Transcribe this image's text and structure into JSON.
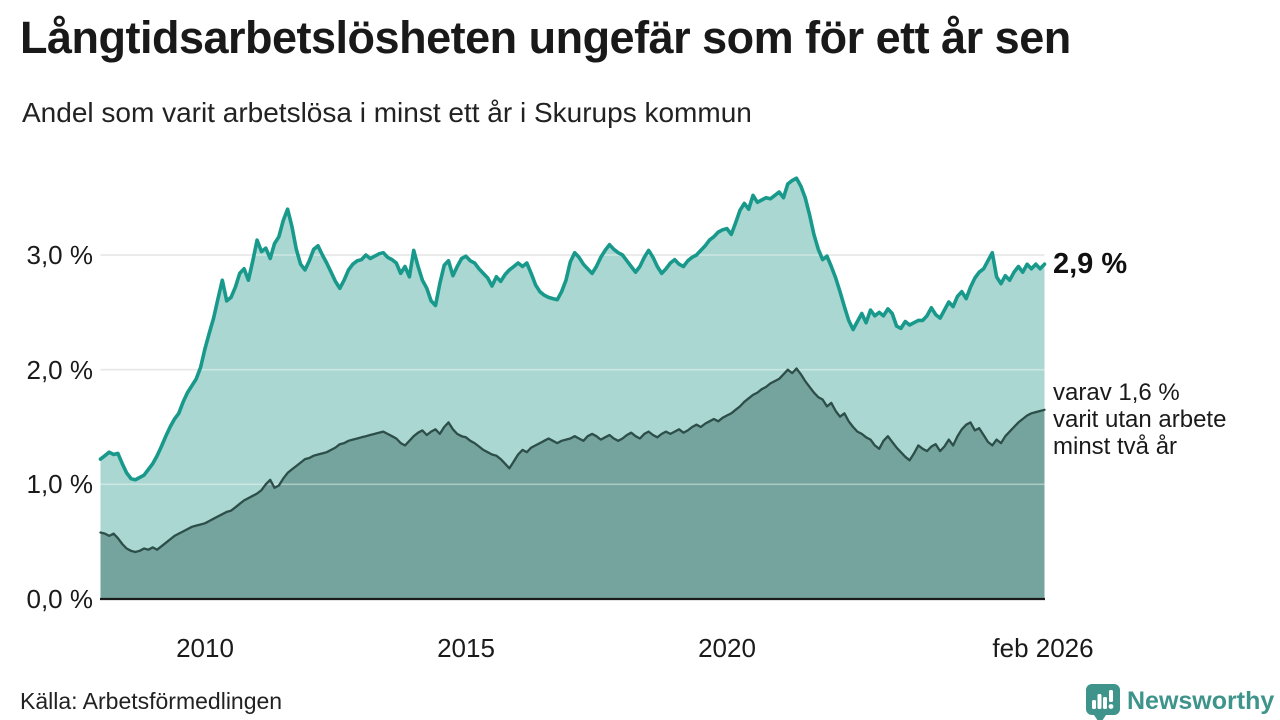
{
  "header": {
    "title": "Långtidsarbetslösheten ungefär som för ett år sen",
    "subtitle": "Andel som varit arbetslösa i minst ett år i Skurups kommun"
  },
  "annotations": {
    "latest_label": "2,9 %",
    "secondary_line1": "varav 1,6 %",
    "secondary_line2": "varit utan arbete",
    "secondary_line3": "minst två år"
  },
  "axes": {
    "y_ticks": [
      "3,0 %",
      "2,0 %",
      "1,0 %",
      "0,0 %"
    ],
    "x_ticks": [
      "2010",
      "2015",
      "2020",
      "feb 2026"
    ]
  },
  "footer": {
    "source": "Källa: Arbetsförmedlingen",
    "brand": "Newsworthy"
  },
  "colors": {
    "line_one_year": "#18998b",
    "fill_one_year": "#aad7d1",
    "line_two_years": "#2d4e49",
    "fill_two_years": "#74a49d",
    "gridline": "#d8d8d8",
    "baseline": "#1a1a1a",
    "brand_teal": "#3e948b"
  },
  "chart_data": {
    "type": "area",
    "title": "Långtidsarbetslösheten ungefär som för ett år sen",
    "subtitle": "Andel som varit arbetslösa i minst ett år i Skurups kommun",
    "unit": "%",
    "frequency": "monthly",
    "x_start": "2008-01",
    "x_end": "2026-02",
    "ylim": [
      0,
      3.8
    ],
    "y_gridlines": [
      1.0,
      2.0,
      3.0
    ],
    "x_tick_years": [
      2010,
      2015,
      2020,
      2026.08
    ],
    "legend_position": "annotations-right",
    "grid": true,
    "latest_value_one_year": 2.9,
    "latest_value_two_years": 1.6,
    "source": "Arbetsförmedlingen",
    "series": [
      {
        "name": "Andel arbetslösa minst ett år",
        "values": [
          1.22,
          1.25,
          1.28,
          1.26,
          1.27,
          1.18,
          1.1,
          1.05,
          1.04,
          1.06,
          1.08,
          1.13,
          1.18,
          1.25,
          1.33,
          1.42,
          1.5,
          1.57,
          1.62,
          1.72,
          1.8,
          1.86,
          1.92,
          2.02,
          2.18,
          2.32,
          2.45,
          2.62,
          2.78,
          2.6,
          2.63,
          2.72,
          2.84,
          2.88,
          2.78,
          2.95,
          3.13,
          3.03,
          3.06,
          2.97,
          3.1,
          3.16,
          3.3,
          3.4,
          3.25,
          3.05,
          2.92,
          2.87,
          2.95,
          3.05,
          3.08,
          3.0,
          2.93,
          2.85,
          2.77,
          2.71,
          2.78,
          2.87,
          2.92,
          2.95,
          2.96,
          3.0,
          2.97,
          2.99,
          3.01,
          3.02,
          2.98,
          2.96,
          2.93,
          2.84,
          2.9,
          2.81,
          3.04,
          2.9,
          2.78,
          2.71,
          2.6,
          2.56,
          2.75,
          2.91,
          2.95,
          2.82,
          2.9,
          2.97,
          2.99,
          2.95,
          2.93,
          2.88,
          2.84,
          2.8,
          2.73,
          2.81,
          2.77,
          2.83,
          2.87,
          2.9,
          2.93,
          2.9,
          2.93,
          2.84,
          2.74,
          2.68,
          2.65,
          2.63,
          2.62,
          2.61,
          2.68,
          2.78,
          2.94,
          3.02,
          2.98,
          2.92,
          2.88,
          2.84,
          2.9,
          2.98,
          3.04,
          3.09,
          3.05,
          3.02,
          3.0,
          2.95,
          2.9,
          2.85,
          2.9,
          2.98,
          3.04,
          2.98,
          2.9,
          2.84,
          2.88,
          2.93,
          2.96,
          2.92,
          2.9,
          2.95,
          2.98,
          3.0,
          3.04,
          3.08,
          3.13,
          3.16,
          3.2,
          3.22,
          3.23,
          3.18,
          3.28,
          3.39,
          3.45,
          3.4,
          3.52,
          3.46,
          3.48,
          3.5,
          3.49,
          3.52,
          3.55,
          3.5,
          3.62,
          3.65,
          3.67,
          3.6,
          3.5,
          3.35,
          3.18,
          3.05,
          2.96,
          2.99,
          2.9,
          2.8,
          2.68,
          2.55,
          2.43,
          2.35,
          2.42,
          2.49,
          2.41,
          2.52,
          2.47,
          2.5,
          2.47,
          2.53,
          2.49,
          2.38,
          2.36,
          2.42,
          2.39,
          2.41,
          2.43,
          2.43,
          2.47,
          2.54,
          2.48,
          2.45,
          2.52,
          2.59,
          2.55,
          2.64,
          2.68,
          2.62,
          2.72,
          2.8,
          2.85,
          2.88,
          2.95,
          3.02,
          2.81,
          2.75,
          2.82,
          2.78,
          2.85,
          2.9,
          2.85,
          2.92,
          2.88,
          2.92,
          2.88,
          2.92
        ]
      },
      {
        "name": "varav utan arbete minst två år",
        "values": [
          0.58,
          0.57,
          0.55,
          0.57,
          0.53,
          0.48,
          0.44,
          0.42,
          0.41,
          0.42,
          0.44,
          0.43,
          0.45,
          0.43,
          0.46,
          0.49,
          0.52,
          0.55,
          0.57,
          0.59,
          0.61,
          0.63,
          0.64,
          0.65,
          0.66,
          0.68,
          0.7,
          0.72,
          0.74,
          0.76,
          0.77,
          0.8,
          0.83,
          0.86,
          0.88,
          0.9,
          0.92,
          0.95,
          1.0,
          1.04,
          0.97,
          0.99,
          1.05,
          1.1,
          1.13,
          1.16,
          1.19,
          1.22,
          1.23,
          1.25,
          1.26,
          1.27,
          1.28,
          1.3,
          1.32,
          1.35,
          1.36,
          1.38,
          1.39,
          1.4,
          1.41,
          1.42,
          1.43,
          1.44,
          1.45,
          1.46,
          1.44,
          1.42,
          1.4,
          1.36,
          1.34,
          1.38,
          1.42,
          1.45,
          1.47,
          1.43,
          1.46,
          1.48,
          1.44,
          1.5,
          1.54,
          1.48,
          1.44,
          1.42,
          1.41,
          1.38,
          1.36,
          1.33,
          1.3,
          1.28,
          1.26,
          1.25,
          1.22,
          1.18,
          1.14,
          1.2,
          1.26,
          1.3,
          1.28,
          1.32,
          1.34,
          1.36,
          1.38,
          1.4,
          1.38,
          1.36,
          1.38,
          1.39,
          1.4,
          1.42,
          1.4,
          1.38,
          1.42,
          1.44,
          1.42,
          1.39,
          1.41,
          1.43,
          1.4,
          1.38,
          1.4,
          1.43,
          1.45,
          1.42,
          1.4,
          1.44,
          1.46,
          1.43,
          1.41,
          1.44,
          1.46,
          1.44,
          1.46,
          1.48,
          1.45,
          1.47,
          1.5,
          1.52,
          1.5,
          1.53,
          1.55,
          1.57,
          1.55,
          1.58,
          1.6,
          1.62,
          1.65,
          1.68,
          1.72,
          1.75,
          1.78,
          1.8,
          1.83,
          1.85,
          1.88,
          1.9,
          1.92,
          1.96,
          2.0,
          1.97,
          2.01,
          1.96,
          1.9,
          1.85,
          1.8,
          1.76,
          1.74,
          1.68,
          1.71,
          1.64,
          1.59,
          1.62,
          1.55,
          1.5,
          1.46,
          1.44,
          1.41,
          1.39,
          1.34,
          1.31,
          1.38,
          1.42,
          1.37,
          1.32,
          1.28,
          1.24,
          1.21,
          1.27,
          1.34,
          1.31,
          1.29,
          1.33,
          1.35,
          1.29,
          1.33,
          1.39,
          1.34,
          1.42,
          1.48,
          1.52,
          1.54,
          1.47,
          1.49,
          1.43,
          1.37,
          1.34,
          1.39,
          1.36,
          1.42,
          1.46,
          1.5,
          1.54,
          1.57,
          1.6,
          1.62,
          1.63,
          1.64,
          1.65
        ]
      }
    ]
  }
}
